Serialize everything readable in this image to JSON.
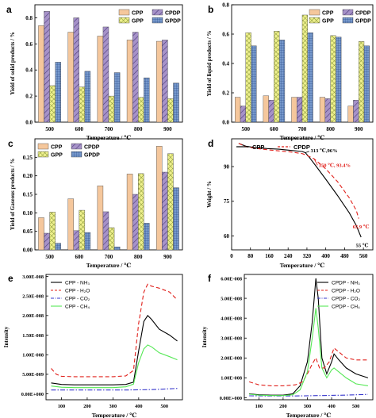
{
  "colors": {
    "CPP": "#f5c79c",
    "CPDP": "#a692c8",
    "GPP": "#eef08d",
    "GPDP": "#7799cc",
    "red": "#e0201b",
    "blue": "#3838cc",
    "green": "#55e855",
    "black": "#000000"
  },
  "chart_data": [
    {
      "panel": "a",
      "type": "bar",
      "ylabel": "Yield of solid products / %",
      "xlabel": "Temperature / ℃",
      "categories": [
        "500",
        "600",
        "700",
        "800",
        "900"
      ],
      "ylim": [
        0,
        0.9
      ],
      "yticks": [
        "0.0",
        "0.2",
        "0.4",
        "0.6",
        "0.8"
      ],
      "legend_placement": "top-right",
      "series": [
        {
          "name": "CPP",
          "pattern": "none",
          "values": [
            0.74,
            0.69,
            0.66,
            0.63,
            0.62
          ]
        },
        {
          "name": "CPDP",
          "pattern": "diag",
          "values": [
            0.85,
            0.8,
            0.73,
            0.69,
            0.63
          ]
        },
        {
          "name": "GPP",
          "pattern": "cross",
          "values": [
            0.28,
            0.27,
            0.2,
            0.19,
            0.18
          ]
        },
        {
          "name": "GPDP",
          "pattern": "grid",
          "values": [
            0.46,
            0.39,
            0.38,
            0.34,
            0.3
          ]
        }
      ]
    },
    {
      "panel": "b",
      "type": "bar",
      "ylabel": "Yield of liquid products / %",
      "xlabel": "Temperature / ℃",
      "categories": [
        "500",
        "600",
        "700",
        "800",
        "900"
      ],
      "ylim": [
        0,
        0.8
      ],
      "yticks": [
        "0.0",
        "0.2",
        "0.4",
        "0.6",
        "0.8"
      ],
      "legend_placement": "top-right",
      "series": [
        {
          "name": "CPP",
          "pattern": "none",
          "values": [
            0.17,
            0.18,
            0.17,
            0.17,
            0.11
          ]
        },
        {
          "name": "CPDP",
          "pattern": "diag",
          "values": [
            0.11,
            0.15,
            0.17,
            0.16,
            0.15
          ]
        },
        {
          "name": "GPP",
          "pattern": "cross",
          "values": [
            0.61,
            0.62,
            0.73,
            0.59,
            0.55
          ]
        },
        {
          "name": "GPDP",
          "pattern": "grid",
          "values": [
            0.52,
            0.56,
            0.61,
            0.58,
            0.52
          ]
        }
      ]
    },
    {
      "panel": "c",
      "type": "bar",
      "ylabel": "Yield of Gaseous products / %",
      "xlabel": "Temperature / ℃",
      "categories": [
        "500",
        "600",
        "700",
        "800",
        "900"
      ],
      "ylim": [
        0,
        0.3
      ],
      "yticks": [
        "0.00",
        "0.05",
        "0.10",
        "0.15",
        "0.20",
        "0.25"
      ],
      "legend_placement": "top-left",
      "series": [
        {
          "name": "CPP",
          "pattern": "none",
          "values": [
            0.087,
            0.138,
            0.173,
            0.205,
            0.28
          ]
        },
        {
          "name": "CPDP",
          "pattern": "diag",
          "values": [
            0.045,
            0.052,
            0.103,
            0.15,
            0.21
          ]
        },
        {
          "name": "GPP",
          "pattern": "cross",
          "values": [
            0.102,
            0.107,
            0.06,
            0.206,
            0.26
          ]
        },
        {
          "name": "GPDP",
          "pattern": "grid",
          "values": [
            0.018,
            0.047,
            0.008,
            0.072,
            0.168
          ]
        }
      ]
    },
    {
      "panel": "d",
      "type": "line",
      "ylabel": "Weight / %",
      "xlabel": "Temperature / ℃",
      "xlim": [
        0,
        600
      ],
      "ylim": [
        54,
        102
      ],
      "xticks": [
        "0",
        "80",
        "160",
        "240",
        "320",
        "400",
        "480",
        "560"
      ],
      "yticks": [
        "60",
        "75",
        "90"
      ],
      "legend_placement": "top",
      "series": [
        {
          "name": "CPP",
          "style": "solid",
          "x": [
            30,
            60,
            100,
            150,
            200,
            250,
            300,
            313,
            330,
            360,
            400,
            450,
            500,
            530,
            550
          ],
          "y": [
            100,
            98.8,
            98.2,
            97.8,
            97.5,
            97.0,
            96.5,
            96.0,
            94.0,
            90.0,
            84.5,
            77.5,
            70.0,
            64.5,
            59.5
          ]
        },
        {
          "name": "CPDP",
          "style": "dashed",
          "x": [
            30,
            60,
            100,
            150,
            200,
            250,
            300,
            320,
            350,
            400,
            450,
            500,
            530,
            540
          ],
          "y": [
            100,
            98.6,
            97.9,
            97.3,
            96.8,
            96.3,
            95.6,
            94.8,
            93.4,
            89.0,
            83.5,
            76.5,
            71.0,
            67.5
          ]
        }
      ],
      "annotations": [
        {
          "text": "313 ℃,96%",
          "color": "black"
        },
        {
          "text": "350 ℃, 93.4%",
          "color": "red"
        },
        {
          "text": "65.9 ℃",
          "color": "red"
        },
        {
          "text": "55 ℃",
          "color": "black"
        }
      ]
    },
    {
      "panel": "e",
      "type": "line",
      "ylabel": "Intensity",
      "xlabel": "Temperature / ℃",
      "xlim": [
        40,
        570
      ],
      "ylim": [
        -1.5e-09,
        3.05e-08
      ],
      "xticks": [
        "100",
        "200",
        "300",
        "400",
        "500"
      ],
      "yticks": [
        "0.00E+000",
        "5.00E-009",
        "1.00E-008",
        "1.50E-008",
        "2.00E-008",
        "2.50E-008",
        "3.00E-008"
      ],
      "legend_placement": "top-left",
      "series": [
        {
          "name": "CPP - NH₃",
          "style": "solid",
          "x": [
            60,
            100,
            150,
            200,
            250,
            300,
            350,
            380,
            400,
            420,
            435,
            450,
            480,
            520,
            550
          ],
          "y": [
            2.8e-09,
            2.4e-09,
            2.3e-09,
            2.3e-09,
            2.3e-09,
            2.3e-09,
            2.4e-09,
            3e-09,
            1.1e-08,
            1.85e-08,
            2e-08,
            1.9e-08,
            1.65e-08,
            1.5e-08,
            1.35e-08
          ]
        },
        {
          "name": "CPP - H₂O",
          "style": "dashed",
          "x": [
            60,
            80,
            100,
            150,
            200,
            250,
            300,
            350,
            380,
            400,
            420,
            435,
            450,
            480,
            520,
            550
          ],
          "y": [
            6.5e-09,
            5e-09,
            4.5e-09,
            4.4e-09,
            4.4e-09,
            4.4e-09,
            4.4e-09,
            4.6e-09,
            6e-09,
            1.8e-08,
            2.6e-08,
            2.8e-08,
            2.75e-08,
            2.7e-08,
            2.6e-08,
            2.4e-08
          ]
        },
        {
          "name": "CPP - CO₂",
          "style": "dashdot",
          "x": [
            60,
            150,
            250,
            350,
            450,
            550
          ],
          "y": [
            1e-09,
            1e-09,
            1e-09,
            1e-09,
            1.1e-09,
            1.4e-09
          ]
        },
        {
          "name": "CPP - CH₄",
          "style": "solid",
          "x": [
            60,
            100,
            150,
            200,
            250,
            300,
            350,
            380,
            400,
            420,
            435,
            450,
            480,
            520,
            550
          ],
          "y": [
            2e-09,
            1.7e-09,
            1.6e-09,
            1.6e-09,
            1.6e-09,
            1.6e-09,
            1.8e-09,
            2.5e-09,
            8e-09,
            1.15e-08,
            1.25e-08,
            1.2e-08,
            1.05e-08,
            9.5e-09,
            8.7e-09
          ]
        }
      ]
    },
    {
      "panel": "f",
      "type": "line",
      "ylabel": "Intensity",
      "xlabel": "Temperature / ℃",
      "xlim": [
        40,
        570
      ],
      "ylim": [
        -1e-09,
        6.2e-08
      ],
      "xticks": [
        "100",
        "200",
        "300",
        "400",
        "500"
      ],
      "yticks": [
        "0.00E+000",
        "1.00E-008",
        "2.00E-008",
        "3.00E-008",
        "4.00E-008",
        "5.00E-008",
        "6.00E-008"
      ],
      "legend_placement": "top-right",
      "series": [
        {
          "name": "CPDP - NH₃",
          "style": "solid",
          "x": [
            60,
            100,
            150,
            200,
            240,
            270,
            300,
            320,
            335,
            345,
            360,
            380,
            400,
            410,
            430,
            460,
            500,
            550
          ],
          "y": [
            2e-09,
            1.5e-09,
            1.3e-09,
            1.3e-09,
            2e-09,
            6e-09,
            1.8e-08,
            3.8e-08,
            6e-08,
            5e-08,
            2e-08,
            1.2e-08,
            1.8e-08,
            2.2e-08,
            1.9e-08,
            1.5e-08,
            1.2e-08,
            1e-08
          ]
        },
        {
          "name": "CPDP - H₂O",
          "style": "dashed",
          "x": [
            60,
            100,
            150,
            200,
            250,
            280,
            300,
            320,
            335,
            350,
            370,
            390,
            410,
            430,
            460,
            500,
            550
          ],
          "y": [
            8e-09,
            6.5e-09,
            6e-09,
            6e-09,
            6.5e-09,
            8e-09,
            1.2e-08,
            1.7e-08,
            2e-08,
            1.5e-08,
            1.5e-08,
            1.8e-08,
            2.5e-08,
            2.3e-08,
            2e-08,
            1.9e-08,
            1.9e-08
          ]
        },
        {
          "name": "CPDP - CO₂",
          "style": "dashdot",
          "x": [
            60,
            150,
            250,
            350,
            450,
            550
          ],
          "y": [
            1e-09,
            9e-10,
            9e-10,
            1.1e-09,
            1.3e-09,
            1.7e-09
          ]
        },
        {
          "name": "CPDP - CH₄",
          "style": "solid",
          "x": [
            60,
            100,
            150,
            200,
            240,
            270,
            300,
            320,
            335,
            345,
            360,
            380,
            400,
            410,
            430,
            460,
            500,
            550
          ],
          "y": [
            1.8e-09,
            1.3e-09,
            1.1e-09,
            1.1e-09,
            1.5e-09,
            4e-09,
            1.3e-08,
            3e-08,
            4.5e-08,
            3.5e-08,
            1.5e-08,
            1e-08,
            1.4e-08,
            1.5e-08,
            1.3e-08,
            1e-08,
            7e-09,
            6e-09
          ]
        }
      ]
    }
  ]
}
